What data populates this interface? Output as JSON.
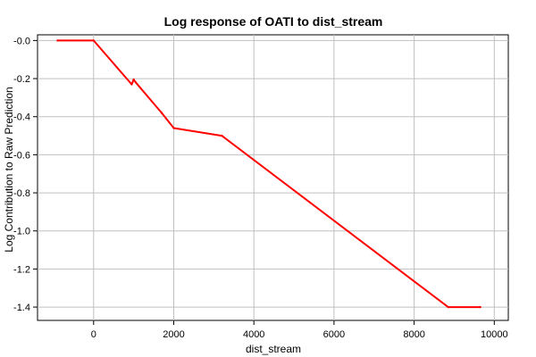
{
  "chart_data": {
    "type": "line",
    "title": "Log response of OATI to dist_stream",
    "xlabel": "dist_stream",
    "ylabel": "Log Contribution to Raw Prediction",
    "xlim": [
      -1400,
      10350
    ],
    "ylim": [
      -1.47,
      0.03
    ],
    "x_ticks": [
      0,
      2000,
      4000,
      6000,
      8000,
      10000
    ],
    "x_tick_labels": [
      "0",
      "2000",
      "4000",
      "6000",
      "8000",
      "10000"
    ],
    "y_ticks": [
      0.0,
      -0.2,
      -0.4,
      -0.6,
      -0.8,
      -1.0,
      -1.2,
      -1.4
    ],
    "y_tick_labels": [
      "-0.0",
      "-0.2",
      "-0.4",
      "-0.6",
      "-0.8",
      "-1.0",
      "-1.2",
      "-1.4"
    ],
    "grid": true,
    "colors": {
      "series": "#ff0000",
      "grid": "#c0c0c0",
      "axis": "#000000"
    },
    "series": [
      {
        "x": [
          -900,
          0,
          950,
          1000,
          1050,
          1700,
          2000,
          3200,
          8850,
          9650
        ],
        "y": [
          0.0,
          0.0,
          -0.23,
          -0.205,
          -0.22,
          -0.38,
          -0.46,
          -0.5,
          -1.4,
          -1.4
        ]
      }
    ]
  }
}
